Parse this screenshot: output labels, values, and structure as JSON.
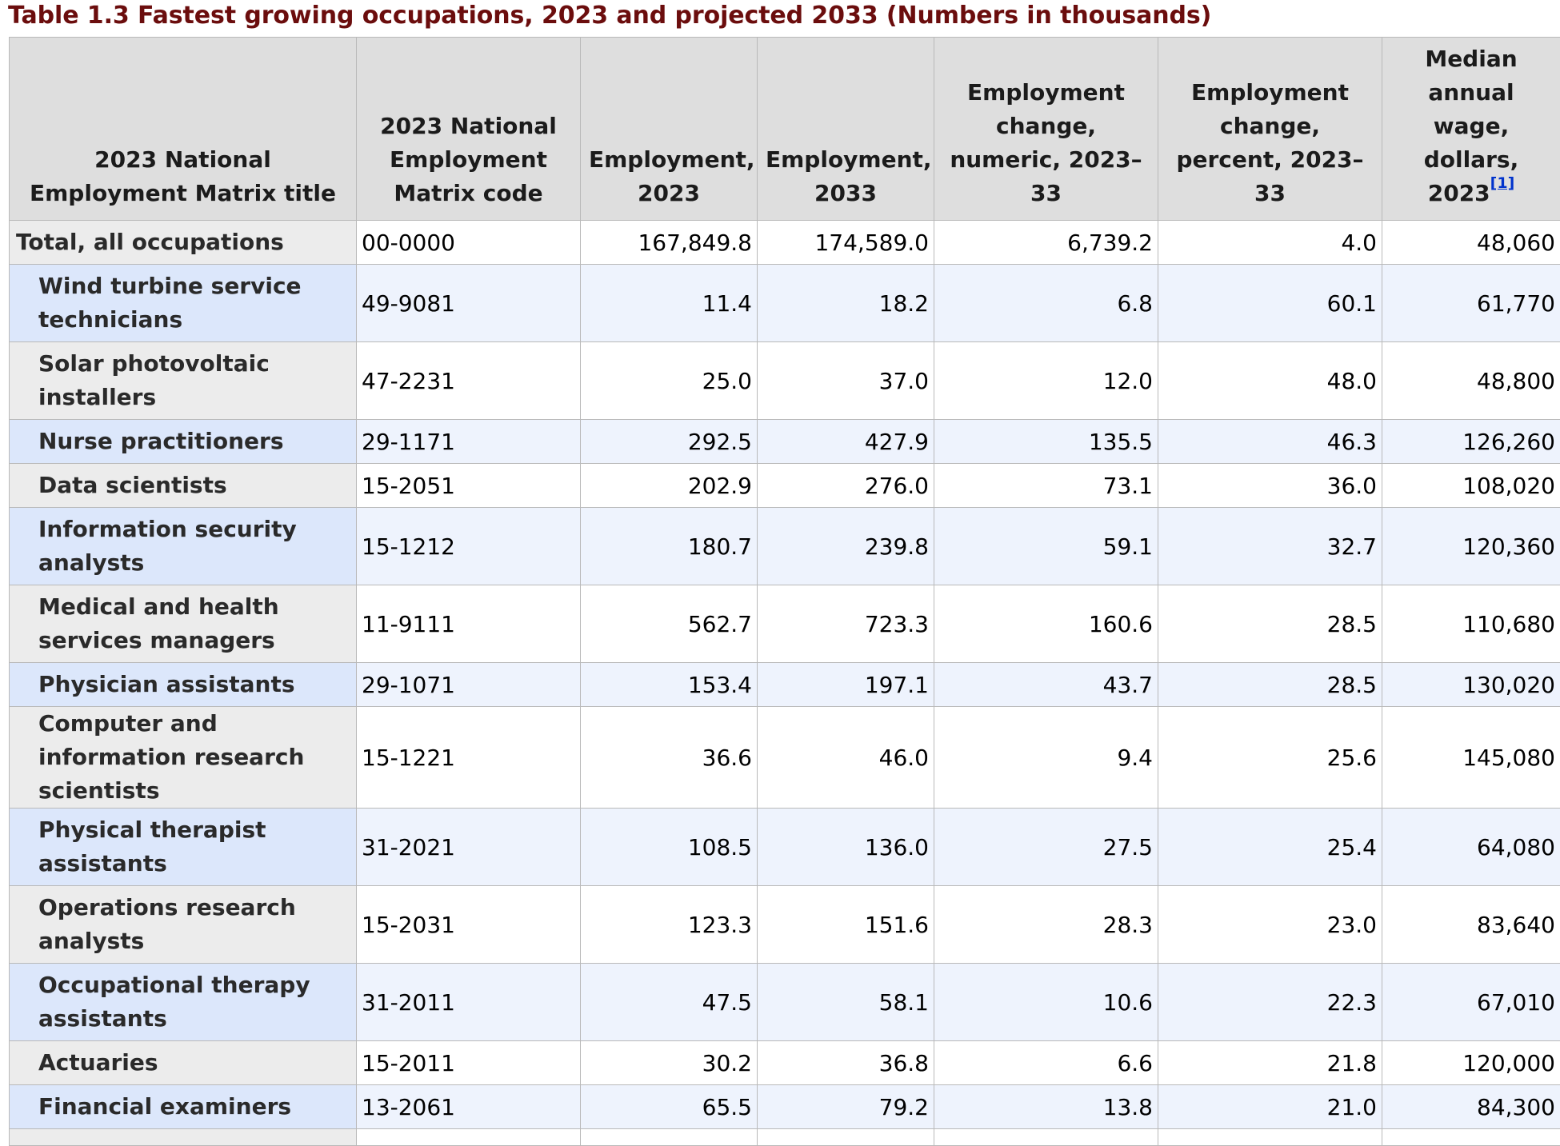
{
  "caption": "Table 1.3 Fastest growing occupations, 2023 and projected 2033 (Numbers in thousands)",
  "columns": [
    "2023 National Employment Matrix title",
    "2023 National Employment Matrix code",
    "Employment, 2023",
    "Employment, 2033",
    "Employment change, numeric, 2023–33",
    "Employment change, percent, 2023–33",
    "Median annual wage, dollars, 2023"
  ],
  "footnote_ref": "[1]",
  "rows": [
    {
      "title": "Total, all occupations",
      "code": "00-0000",
      "emp2023": "167,849.8",
      "emp2033": "174,589.0",
      "chg_num": "6,739.2",
      "chg_pct": "4.0",
      "wage": "48,060"
    },
    {
      "title": "Wind turbine service technicians",
      "code": "49-9081",
      "emp2023": "11.4",
      "emp2033": "18.2",
      "chg_num": "6.8",
      "chg_pct": "60.1",
      "wage": "61,770"
    },
    {
      "title": "Solar photovoltaic installers",
      "code": "47-2231",
      "emp2023": "25.0",
      "emp2033": "37.0",
      "chg_num": "12.0",
      "chg_pct": "48.0",
      "wage": "48,800"
    },
    {
      "title": "Nurse practitioners",
      "code": "29-1171",
      "emp2023": "292.5",
      "emp2033": "427.9",
      "chg_num": "135.5",
      "chg_pct": "46.3",
      "wage": "126,260"
    },
    {
      "title": "Data scientists",
      "code": "15-2051",
      "emp2023": "202.9",
      "emp2033": "276.0",
      "chg_num": "73.1",
      "chg_pct": "36.0",
      "wage": "108,020"
    },
    {
      "title": "Information security analysts",
      "code": "15-1212",
      "emp2023": "180.7",
      "emp2033": "239.8",
      "chg_num": "59.1",
      "chg_pct": "32.7",
      "wage": "120,360"
    },
    {
      "title": "Medical and health services managers",
      "code": "11-9111",
      "emp2023": "562.7",
      "emp2033": "723.3",
      "chg_num": "160.6",
      "chg_pct": "28.5",
      "wage": "110,680"
    },
    {
      "title": "Physician assistants",
      "code": "29-1071",
      "emp2023": "153.4",
      "emp2033": "197.1",
      "chg_num": "43.7",
      "chg_pct": "28.5",
      "wage": "130,020"
    },
    {
      "title": "Computer and information research scientists",
      "code": "15-1221",
      "emp2023": "36.6",
      "emp2033": "46.0",
      "chg_num": "9.4",
      "chg_pct": "25.6",
      "wage": "145,080"
    },
    {
      "title": "Physical therapist assistants",
      "code": "31-2021",
      "emp2023": "108.5",
      "emp2033": "136.0",
      "chg_num": "27.5",
      "chg_pct": "25.4",
      "wage": "64,080"
    },
    {
      "title": "Operations research analysts",
      "code": "15-2031",
      "emp2023": "123.3",
      "emp2033": "151.6",
      "chg_num": "28.3",
      "chg_pct": "23.0",
      "wage": "83,640"
    },
    {
      "title": "Occupational therapy assistants",
      "code": "31-2011",
      "emp2023": "47.5",
      "emp2033": "58.1",
      "chg_num": "10.6",
      "chg_pct": "22.3",
      "wage": "67,010"
    },
    {
      "title": "Actuaries",
      "code": "15-2011",
      "emp2023": "30.2",
      "emp2033": "36.8",
      "chg_num": "6.6",
      "chg_pct": "21.8",
      "wage": "120,000"
    },
    {
      "title": "Financial examiners",
      "code": "13-2061",
      "emp2023": "65.5",
      "emp2033": "79.2",
      "chg_num": "13.8",
      "chg_pct": "21.0",
      "wage": "84,300"
    }
  ]
}
